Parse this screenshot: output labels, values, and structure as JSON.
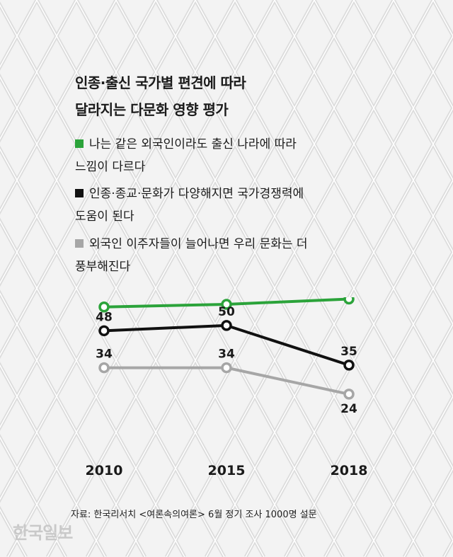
{
  "title_lines": [
    "인종·출신 국가별 편견에 따라",
    "달라지는 다문화 영향 평가"
  ],
  "legend": [
    {
      "lines": [
        "나는 같은 외국인이라도 출신 나라에 따라",
        "느낌이 다르다"
      ],
      "color": "#2ba33a"
    },
    {
      "lines": [
        "인종·종교·문화가 다양해지면 국가경쟁력에",
        "도움이 된다"
      ],
      "color": "#111111"
    },
    {
      "lines": [
        "외국인 이주자들이 늘어나면 우리 문화는 더",
        "풍부해진다"
      ],
      "color": "#a6a6a6"
    }
  ],
  "chart_data": {
    "type": "line",
    "categories": [
      "2010",
      "2015",
      "2018"
    ],
    "series": [
      {
        "name": "나는 같은 외국인이라도 출신 나라에 따라 느낌이 다르다",
        "values": [
          57,
          58,
          60
        ],
        "color": "#2ba33a"
      },
      {
        "name": "인종·종교·문화가 다양해지면 국가경쟁력에 도움이 된다",
        "values": [
          48,
          50,
          35
        ],
        "color": "#111111"
      },
      {
        "name": "외국인 이주자들이 늘어나면 우리 문화는 더 풍부해진다",
        "values": [
          34,
          34,
          24
        ],
        "color": "#a6a6a6"
      }
    ],
    "grid": false
  },
  "source": "자료: 한국리서치 <여론속의여론> 6월 정기 조사 1000명 설문",
  "logo": "한국일보"
}
